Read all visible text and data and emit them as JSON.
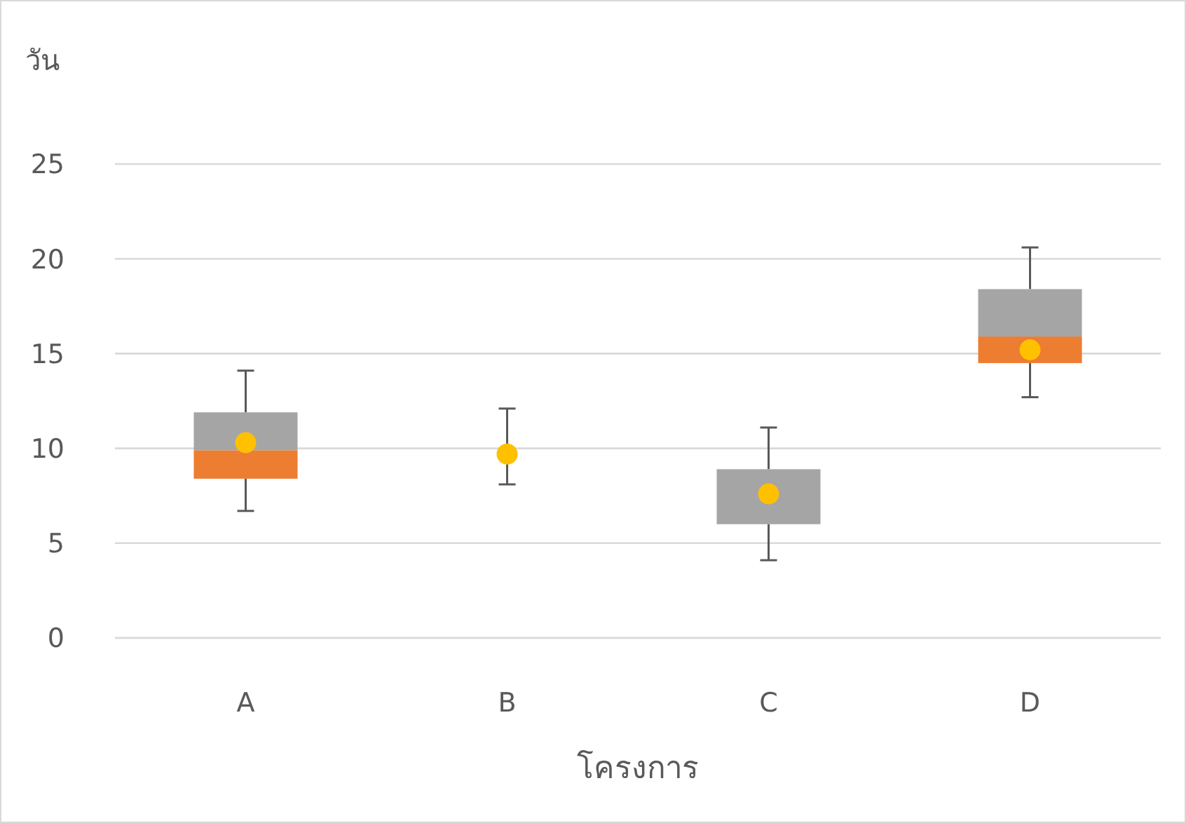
{
  "chart_data": {
    "type": "box",
    "ylabel": "วัน",
    "xlabel": "โครงการ",
    "categories": [
      "A",
      "B",
      "C",
      "D"
    ],
    "series": [
      {
        "color": "#a5a5a5",
        "colors": [
          "#ed7d31",
          null,
          "#a5a5a5",
          "#ed7d31"
        ],
        "boxes": [
          {
            "low": 6.7,
            "q1": 8.4,
            "median": 9.9,
            "q3": 11.9,
            "high": 14.1
          },
          null,
          {
            "low": 4.1,
            "q1": 6.0,
            "median": 6.0,
            "q3": 8.9,
            "high": 11.1
          },
          {
            "low": 12.7,
            "q1": 14.5,
            "median": 15.9,
            "q3": 18.4,
            "high": 20.6
          }
        ]
      },
      {
        "type": "scatter",
        "color": "#ffc000",
        "x": [
          "A",
          "B",
          "C",
          "D"
        ],
        "values": [
          10.3,
          9.7,
          7.6,
          15.2
        ],
        "errors": [
          null,
          [
            8.1,
            12.1
          ],
          null,
          null
        ]
      }
    ],
    "ylim": [
      0,
      25
    ],
    "yticks": [
      0,
      5,
      10,
      15,
      20,
      25
    ],
    "grid": "y",
    "marker": "circle"
  }
}
